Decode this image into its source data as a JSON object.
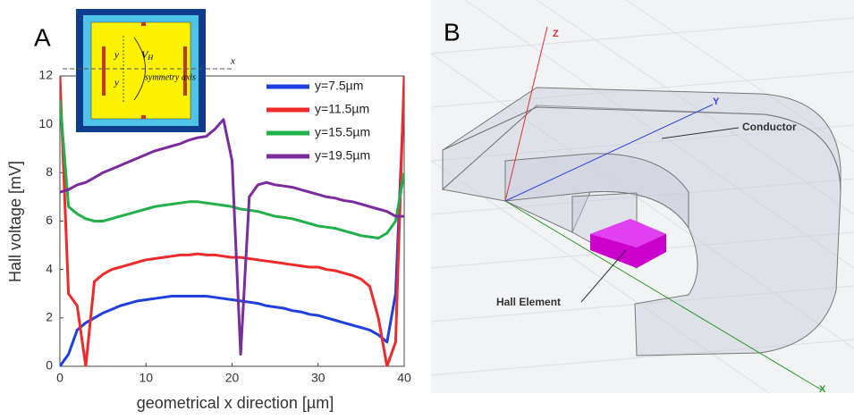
{
  "chart_data": {
    "type": "line",
    "panel_label": "A",
    "xlabel": "geometrical x direction [µm]",
    "ylabel": "Hall voltage [mV]",
    "x": [
      0,
      1,
      2,
      3,
      4,
      5,
      6,
      7,
      8,
      9,
      10,
      11,
      12,
      13,
      14,
      15,
      16,
      17,
      18,
      19,
      20,
      21,
      22,
      23,
      24,
      25,
      26,
      27,
      28,
      29,
      30,
      31,
      32,
      33,
      34,
      35,
      36,
      37,
      38,
      39,
      40
    ],
    "series": [
      {
        "name": "y=7.5µm",
        "color": "#1f3fe0",
        "values": [
          0,
          0.5,
          1.5,
          1.8,
          2.0,
          2.2,
          2.35,
          2.5,
          2.6,
          2.7,
          2.75,
          2.8,
          2.85,
          2.9,
          2.9,
          2.9,
          2.9,
          2.9,
          2.85,
          2.8,
          2.75,
          2.7,
          2.65,
          2.6,
          2.5,
          2.45,
          2.4,
          2.3,
          2.25,
          2.15,
          2.1,
          2.0,
          1.9,
          1.8,
          1.7,
          1.6,
          1.5,
          1.3,
          1.0,
          3,
          11.5
        ]
      },
      {
        "name": "y=11.5µm",
        "color": "#ee2a2a",
        "values": [
          12,
          3,
          2.5,
          0,
          3.5,
          3.8,
          4.0,
          4.1,
          4.2,
          4.3,
          4.4,
          4.45,
          4.5,
          4.55,
          4.6,
          4.6,
          4.65,
          4.6,
          4.6,
          4.55,
          4.5,
          4.5,
          4.45,
          4.4,
          4.35,
          4.3,
          4.25,
          4.2,
          4.15,
          4.1,
          4.1,
          4.0,
          3.95,
          3.85,
          3.75,
          3.6,
          3.3,
          2,
          0,
          1,
          12
        ]
      },
      {
        "name": "y=15.5µm",
        "color": "#22b04a",
        "values": [
          11,
          6.6,
          6.3,
          6.1,
          6.0,
          6.0,
          6.1,
          6.2,
          6.3,
          6.4,
          6.5,
          6.6,
          6.65,
          6.7,
          6.75,
          6.8,
          6.8,
          6.75,
          6.7,
          6.65,
          6.6,
          6.5,
          6.45,
          6.4,
          6.3,
          6.2,
          6.15,
          6.1,
          6.0,
          5.9,
          5.8,
          5.75,
          5.7,
          5.6,
          5.5,
          5.4,
          5.35,
          5.3,
          5.5,
          6,
          8
        ]
      },
      {
        "name": "y=19.5µm",
        "color": "#7a2c9e",
        "values": [
          7.2,
          7.3,
          7.5,
          7.6,
          7.8,
          8.0,
          8.15,
          8.3,
          8.45,
          8.6,
          8.75,
          8.9,
          9.0,
          9.1,
          9.2,
          9.35,
          9.45,
          9.5,
          9.8,
          10.2,
          8.5,
          0.5,
          7,
          7.5,
          7.6,
          7.5,
          7.45,
          7.4,
          7.3,
          7.2,
          7.1,
          7.0,
          6.95,
          6.85,
          6.8,
          6.7,
          6.6,
          6.5,
          6.4,
          6.2,
          6.2
        ]
      }
    ],
    "xlim": [
      0,
      40
    ],
    "xticks": [
      0,
      10,
      20,
      30,
      40
    ],
    "ylim": [
      0,
      12
    ],
    "yticks": [
      0,
      2,
      4,
      6,
      8,
      10,
      12
    ]
  },
  "inset": {
    "y_labels": [
      "y",
      "y"
    ],
    "voltage": "V",
    "voltage_subscript": "H",
    "axis": "x",
    "symmetry": "symmetry axis"
  },
  "diagram": {
    "panel_label": "B",
    "axes": {
      "z": "Z",
      "y": "Y",
      "x": "X"
    },
    "labels": {
      "conductor": "Conductor",
      "hall_element": "Hall Element"
    }
  }
}
